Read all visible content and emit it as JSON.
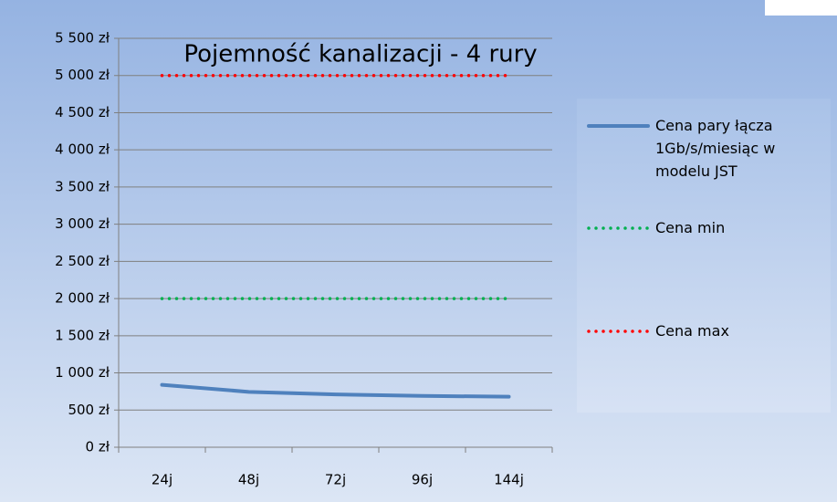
{
  "chart_data": {
    "type": "line",
    "title": "Pojemność kanalizacji - 4 rury",
    "categories": [
      "24j",
      "48j",
      "72j",
      "96j",
      "144j"
    ],
    "series": [
      {
        "name": "Cena pary łącza 1Gb/s/miesiąc w modelu JST",
        "color": "#4f81bd",
        "style": "solid",
        "values": [
          840,
          745,
          710,
          690,
          680
        ]
      },
      {
        "name": "Cena min",
        "color": "#00b050",
        "style": "dotted",
        "values": [
          2000,
          2000,
          2000,
          2000,
          2000
        ]
      },
      {
        "name": "Cena max",
        "color": "#ff0000",
        "style": "dotted",
        "values": [
          5000,
          5000,
          5000,
          5000,
          5000
        ]
      }
    ],
    "ylim": [
      0,
      5500
    ],
    "yticks": [
      {
        "value": 0,
        "label": "0 zł"
      },
      {
        "value": 500,
        "label": "500 zł"
      },
      {
        "value": 1000,
        "label": "1 000 zł"
      },
      {
        "value": 1500,
        "label": "1 500 zł"
      },
      {
        "value": 2000,
        "label": "2 000 zł"
      },
      {
        "value": 2500,
        "label": "2 500 zł"
      },
      {
        "value": 3000,
        "label": "3 000 zł"
      },
      {
        "value": 3500,
        "label": "3 500 zł"
      },
      {
        "value": 4000,
        "label": "4 000 zł"
      },
      {
        "value": 4500,
        "label": "4 500 zł"
      },
      {
        "value": 5000,
        "label": "5 000 zł"
      },
      {
        "value": 5500,
        "label": "5 500 zł"
      }
    ],
    "grid": true,
    "legend": "right"
  }
}
